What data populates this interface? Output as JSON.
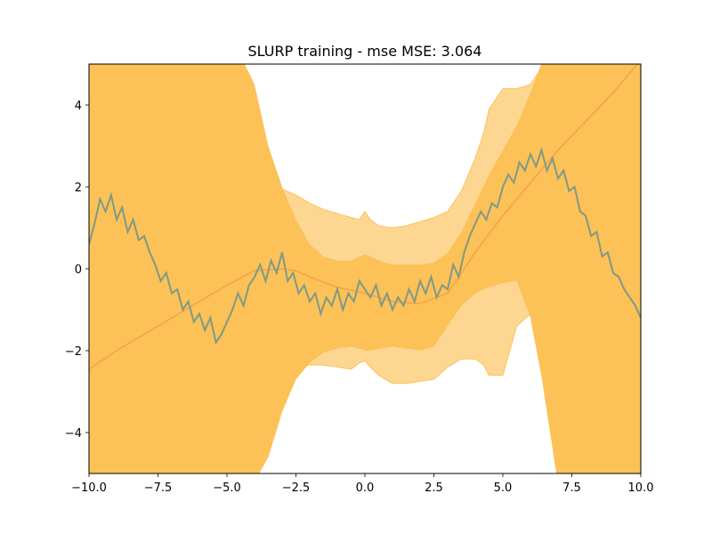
{
  "chart_data": {
    "type": "line",
    "title": "SLURP training - mse MSE: 3.064",
    "xlabel": "",
    "ylabel": "",
    "xlim": [
      -10,
      10
    ],
    "ylim": [
      -5,
      5
    ],
    "grid": false,
    "x_ticks": [
      -10,
      -7.5,
      -5,
      -2.5,
      0,
      2.5,
      5,
      7.5,
      10
    ],
    "x_tick_labels": [
      "−10.0",
      "−7.5",
      "−5.0",
      "−2.5",
      "0.0",
      "2.5",
      "5.0",
      "7.5",
      "10.0"
    ],
    "y_ticks": [
      -4,
      -2,
      0,
      2,
      4
    ],
    "y_tick_labels": [
      "−4",
      "−2",
      "0",
      "2",
      "4"
    ],
    "colors": {
      "outer_band": "#fdd792",
      "inner_band": "#fcc157",
      "mean_line": "#f6a44a",
      "data_line": "#7f9a86"
    },
    "mean": {
      "x": [
        -10,
        -9,
        -8,
        -7,
        -6,
        -5,
        -4,
        -3,
        -2.5,
        -2,
        -1,
        0,
        1,
        2,
        3,
        4,
        5,
        6,
        7,
        8,
        9,
        10
      ],
      "y": [
        -2.45,
        -2.0,
        -1.6,
        -1.2,
        -0.8,
        -0.4,
        -0.05,
        0.0,
        -0.05,
        -0.2,
        -0.45,
        -0.6,
        -0.8,
        -0.85,
        -0.6,
        0.4,
        1.3,
        2.1,
        2.9,
        3.6,
        4.3,
        5.1
      ]
    },
    "inner_band": {
      "x": [
        -10,
        -9,
        -8,
        -7.5,
        -7,
        -6.5,
        -6,
        -5.5,
        -5,
        -4.5,
        -4,
        -3.5,
        -3,
        -2.5,
        -2,
        -1.5,
        -1,
        -0.5,
        -0.2,
        0,
        0.2,
        0.5,
        1,
        1.5,
        2,
        2.5,
        3,
        3.5,
        4,
        4.5,
        5,
        5.5,
        6,
        6.5,
        7,
        7.5,
        8,
        8.5,
        9,
        9.5,
        10
      ],
      "upper": [
        5.2,
        5.2,
        5.2,
        5.2,
        5.2,
        5.2,
        5.2,
        5.2,
        5.2,
        5.2,
        4.5,
        3.0,
        2.0,
        1.2,
        0.6,
        0.3,
        0.2,
        0.2,
        0.3,
        0.35,
        0.3,
        0.2,
        0.1,
        0.1,
        0.1,
        0.15,
        0.4,
        0.9,
        1.6,
        2.3,
        2.9,
        3.5,
        4.3,
        5.2,
        5.2,
        5.2,
        5.2,
        5.2,
        5.2,
        5.2,
        5.2
      ],
      "lower": [
        -5.2,
        -5.2,
        -5.2,
        -5.2,
        -5.2,
        -5.2,
        -5.2,
        -5.2,
        -5.2,
        -5.2,
        -5.2,
        -4.6,
        -3.5,
        -2.7,
        -2.3,
        -2.05,
        -1.95,
        -1.9,
        -1.95,
        -2.0,
        -2.0,
        -1.95,
        -1.9,
        -1.95,
        -2.0,
        -1.9,
        -1.4,
        -0.9,
        -0.6,
        -0.45,
        -0.35,
        -0.3,
        -1.2,
        -3.0,
        -5.2,
        -5.2,
        -5.2,
        -5.2,
        -5.2,
        -5.2,
        -5.2
      ]
    },
    "outer_band": {
      "x": [
        -10,
        -9,
        -8.7,
        -8.5,
        -8,
        -7.5,
        -7,
        -6.5,
        -6,
        -5.5,
        -5,
        -4.5,
        -4,
        -3.5,
        -3,
        -2.5,
        -2,
        -1.5,
        -1,
        -0.5,
        -0.2,
        0,
        0.2,
        0.5,
        1,
        1.5,
        2,
        2.5,
        3,
        3.5,
        4,
        4.3,
        4.5,
        5,
        5.5,
        6,
        6.3,
        6.5,
        7,
        7.5,
        8,
        9,
        10
      ],
      "upper": [
        5.2,
        5.2,
        5.2,
        5.0,
        4.2,
        3.5,
        3.2,
        2.8,
        2.3,
        2.2,
        2.25,
        2.25,
        2.2,
        2.1,
        1.95,
        1.8,
        1.6,
        1.45,
        1.35,
        1.25,
        1.2,
        1.4,
        1.2,
        1.05,
        1.0,
        1.05,
        1.15,
        1.25,
        1.4,
        1.9,
        2.7,
        3.3,
        3.9,
        4.4,
        4.4,
        4.5,
        4.8,
        5.2,
        5.2,
        5.2,
        5.2,
        5.2,
        5.2
      ],
      "lower": [
        -5.2,
        -5.2,
        -5.2,
        -5.2,
        -5.2,
        -5.2,
        -5.2,
        -5.2,
        -5.2,
        -5.0,
        -4.4,
        -4.0,
        -3.4,
        -2.8,
        -2.55,
        -2.4,
        -2.35,
        -2.35,
        -2.4,
        -2.45,
        -2.3,
        -2.25,
        -2.4,
        -2.6,
        -2.8,
        -2.8,
        -2.75,
        -2.7,
        -2.4,
        -2.2,
        -2.2,
        -2.35,
        -2.6,
        -2.6,
        -1.4,
        -1.1,
        -2.0,
        -3.0,
        -5.2,
        -5.2,
        -5.2,
        -5.2,
        -5.2
      ]
    },
    "data": {
      "x": [
        -10,
        -9.8,
        -9.6,
        -9.4,
        -9.2,
        -9.0,
        -8.8,
        -8.6,
        -8.4,
        -8.2,
        -8.0,
        -7.8,
        -7.6,
        -7.4,
        -7.2,
        -7.0,
        -6.8,
        -6.6,
        -6.4,
        -6.2,
        -6.0,
        -5.8,
        -5.6,
        -5.4,
        -5.2,
        -5.0,
        -4.8,
        -4.6,
        -4.4,
        -4.2,
        -4.0,
        -3.8,
        -3.6,
        -3.4,
        -3.2,
        -3.0,
        -2.8,
        -2.6,
        -2.4,
        -2.2,
        -2.0,
        -1.8,
        -1.6,
        -1.4,
        -1.2,
        -1.0,
        -0.8,
        -0.6,
        -0.4,
        -0.2,
        0.0,
        0.2,
        0.4,
        0.6,
        0.8,
        1.0,
        1.2,
        1.4,
        1.6,
        1.8,
        2.0,
        2.2,
        2.4,
        2.6,
        2.8,
        3.0,
        3.2,
        3.4,
        3.6,
        3.8,
        4.0,
        4.2,
        4.4,
        4.6,
        4.8,
        5.0,
        5.2,
        5.4,
        5.6,
        5.8,
        6.0,
        6.2,
        6.4,
        6.6,
        6.8,
        7.0,
        7.2,
        7.4,
        7.6,
        7.8,
        8.0,
        8.2,
        8.4,
        8.6,
        8.8,
        9.0,
        9.2,
        9.4,
        9.6,
        9.8,
        10.0
      ],
      "y": [
        0.6,
        1.1,
        1.7,
        1.4,
        1.8,
        1.2,
        1.5,
        0.9,
        1.2,
        0.7,
        0.8,
        0.4,
        0.1,
        -0.3,
        -0.1,
        -0.6,
        -0.5,
        -1.0,
        -0.8,
        -1.3,
        -1.1,
        -1.5,
        -1.2,
        -1.8,
        -1.6,
        -1.3,
        -1.0,
        -0.6,
        -0.9,
        -0.4,
        -0.2,
        0.1,
        -0.3,
        0.2,
        -0.1,
        0.4,
        -0.3,
        -0.1,
        -0.6,
        -0.4,
        -0.8,
        -0.6,
        -1.1,
        -0.7,
        -0.9,
        -0.5,
        -1.0,
        -0.6,
        -0.8,
        -0.3,
        -0.5,
        -0.7,
        -0.4,
        -0.9,
        -0.6,
        -1.0,
        -0.7,
        -0.9,
        -0.5,
        -0.8,
        -0.3,
        -0.6,
        -0.2,
        -0.7,
        -0.4,
        -0.5,
        0.1,
        -0.2,
        0.4,
        0.8,
        1.1,
        1.4,
        1.2,
        1.6,
        1.5,
        2.0,
        2.3,
        2.1,
        2.6,
        2.4,
        2.8,
        2.5,
        2.9,
        2.4,
        2.7,
        2.2,
        2.4,
        1.9,
        2.0,
        1.4,
        1.3,
        0.8,
        0.9,
        0.3,
        0.4,
        -0.1,
        -0.2,
        -0.5,
        -0.7,
        -0.9,
        -1.2
      ]
    }
  }
}
